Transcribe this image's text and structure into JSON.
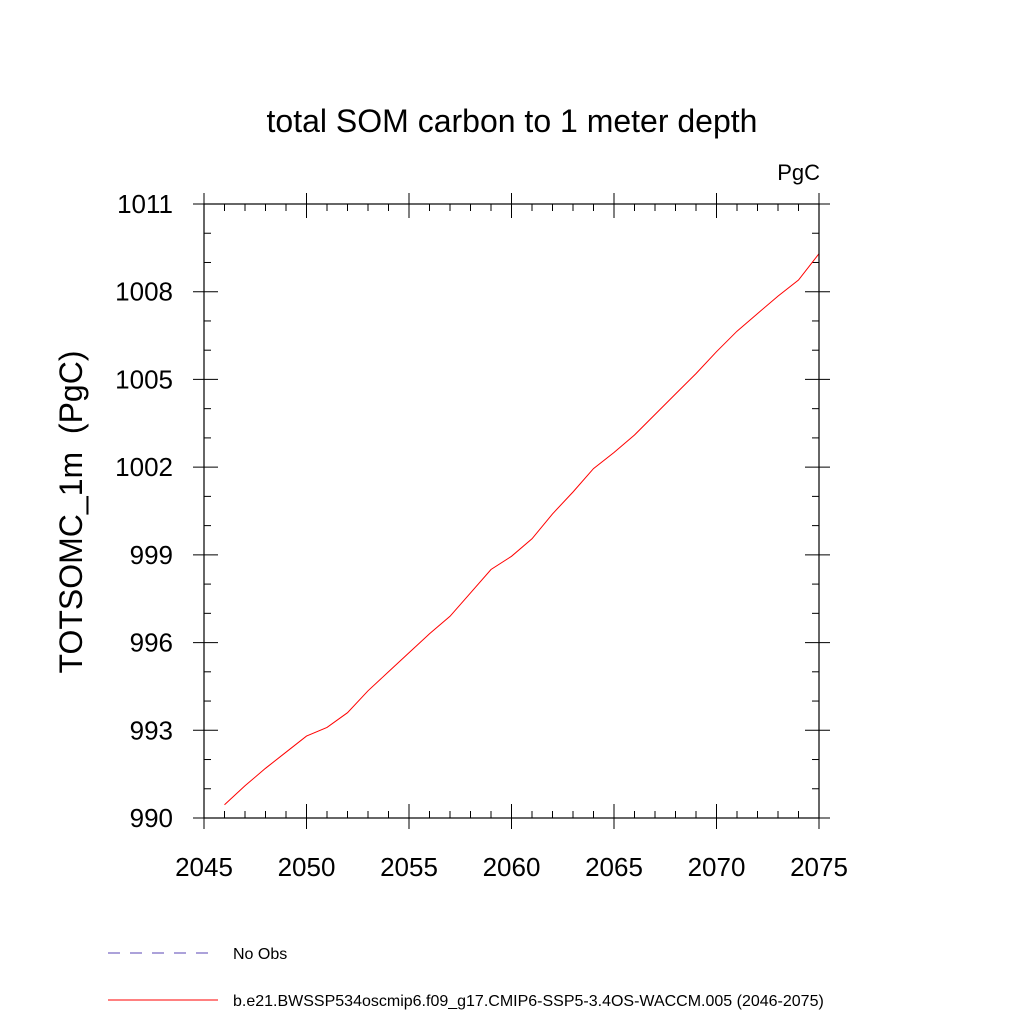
{
  "chart_data": {
    "type": "line",
    "title": "total SOM carbon to 1 meter depth",
    "units_label": "PgC",
    "xlabel": "",
    "ylabel": "TOTSOMC_1m  (PgC)",
    "xlim": [
      2045,
      2075
    ],
    "ylim": [
      990,
      1011
    ],
    "xticks": [
      2045,
      2050,
      2055,
      2060,
      2065,
      2070,
      2075
    ],
    "yticks": [
      990,
      993,
      996,
      999,
      1002,
      1005,
      1008,
      1011
    ],
    "x_minor_step": 1,
    "y_minor_step": 1,
    "grid": false,
    "legend_position": "bottom-left",
    "series": [
      {
        "name": "b.e21.BWSSP534oscmip6.f09_g17.CMIP6-SSP5-3.4OS-WACCM.005 (2046-2075)",
        "color": "#ff0000",
        "dash": "solid",
        "x": [
          2046,
          2047,
          2048,
          2049,
          2050,
          2051,
          2052,
          2053,
          2054,
          2055,
          2056,
          2057,
          2058,
          2059,
          2060,
          2061,
          2062,
          2063,
          2064,
          2065,
          2066,
          2067,
          2068,
          2069,
          2070,
          2071,
          2072,
          2073,
          2074,
          2075
        ],
        "y": [
          990.45,
          991.1,
          991.7,
          992.25,
          992.8,
          993.1,
          993.6,
          994.35,
          995.0,
          995.65,
          996.3,
          996.9,
          997.7,
          998.5,
          998.95,
          999.55,
          1000.4,
          1001.15,
          1001.95,
          1002.5,
          1003.1,
          1003.8,
          1004.5,
          1005.2,
          1005.95,
          1006.65,
          1007.25,
          1007.85,
          1008.4,
          1009.3
        ]
      },
      {
        "name": "No Obs",
        "color": "#5a46b4",
        "dash": "dashed",
        "x": [],
        "y": []
      }
    ]
  }
}
